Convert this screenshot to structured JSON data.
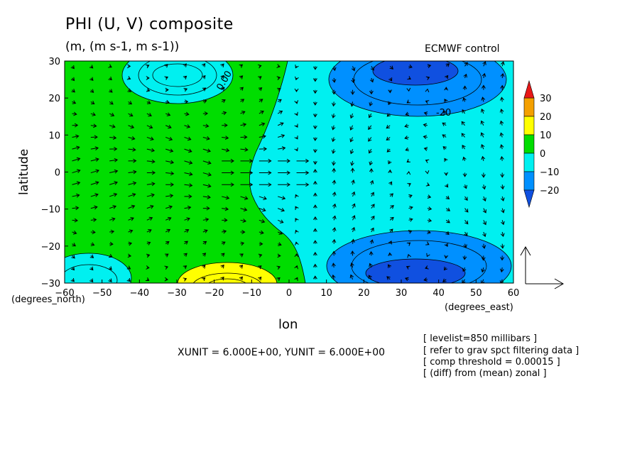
{
  "title": "PHI (U, V) composite",
  "units": "(m, (m s-1, m s-1))",
  "source": "ECMWF  control",
  "y_axis_label": "latitude",
  "x_axis_label": "lon",
  "y_coord_note": "(degrees_north)",
  "x_coord_note": "(degrees_east)",
  "vector_units": "XUNIT = 6.000E+00, YUNIT = 6.000E+00",
  "notes": [
    "[ levelist=850 millibars ]",
    "[ refer to grav spct filtering data ]",
    "[ comp threshold = 0.00015 ]",
    "[ (diff) from (mean) zonal ]"
  ],
  "contour_labels": [
    "0.00",
    "-20"
  ],
  "colors": {
    "above_30": "#e81818",
    "20_30": "#f4a000",
    "10_20": "#ffff00",
    "0_10": "#00dd00",
    "m10_0": "#00f0f0",
    "m20_m10": "#0090ff",
    "below_m20": "#1050e0"
  },
  "chart_data": {
    "type": "heatmap",
    "subtype": "filled contour with wind vectors",
    "x_ticks": [
      -60,
      -50,
      -40,
      -30,
      -20,
      -10,
      0,
      10,
      20,
      30,
      40,
      50,
      60
    ],
    "y_ticks": [
      -30,
      -20,
      -10,
      0,
      10,
      20,
      30
    ],
    "xlim": [
      -60,
      60
    ],
    "ylim": [
      -30,
      30
    ],
    "colorbar": {
      "levels": [
        -20,
        -10,
        0,
        10,
        20,
        30
      ],
      "labels": [
        "30",
        "20",
        "10",
        "0",
        "−10",
        "−20"
      ]
    },
    "regions": [
      {
        "value_range": "0 to 10",
        "desc": "western half (lon -60 to -10)"
      },
      {
        "value_range": "-10 to 0",
        "desc": "eastern half (lon 0 to 60)"
      },
      {
        "value_range": "-10 to 0",
        "desc": "patch near lon -40 to -15, lat 18 to 30"
      },
      {
        "value_range": "-10 to 0",
        "desc": "patch near lon -60 to -45, lat -30 to -22"
      },
      {
        "value_range": "10 to 20",
        "desc": "patch near lon -30 to -5, lat -30 to -25"
      },
      {
        "value_range": "-20 to -10",
        "desc": "patch near lon 15 to 60, lat 15 to 30"
      },
      {
        "value_range": "-20 to -10",
        "desc": "patch near lon 15 to 60, lat -30 to -15"
      },
      {
        "value_range": "below -20",
        "desc": "cores near lon 30-45, lat 25 and -25"
      }
    ],
    "grid": false,
    "legend": "colorbar right"
  }
}
